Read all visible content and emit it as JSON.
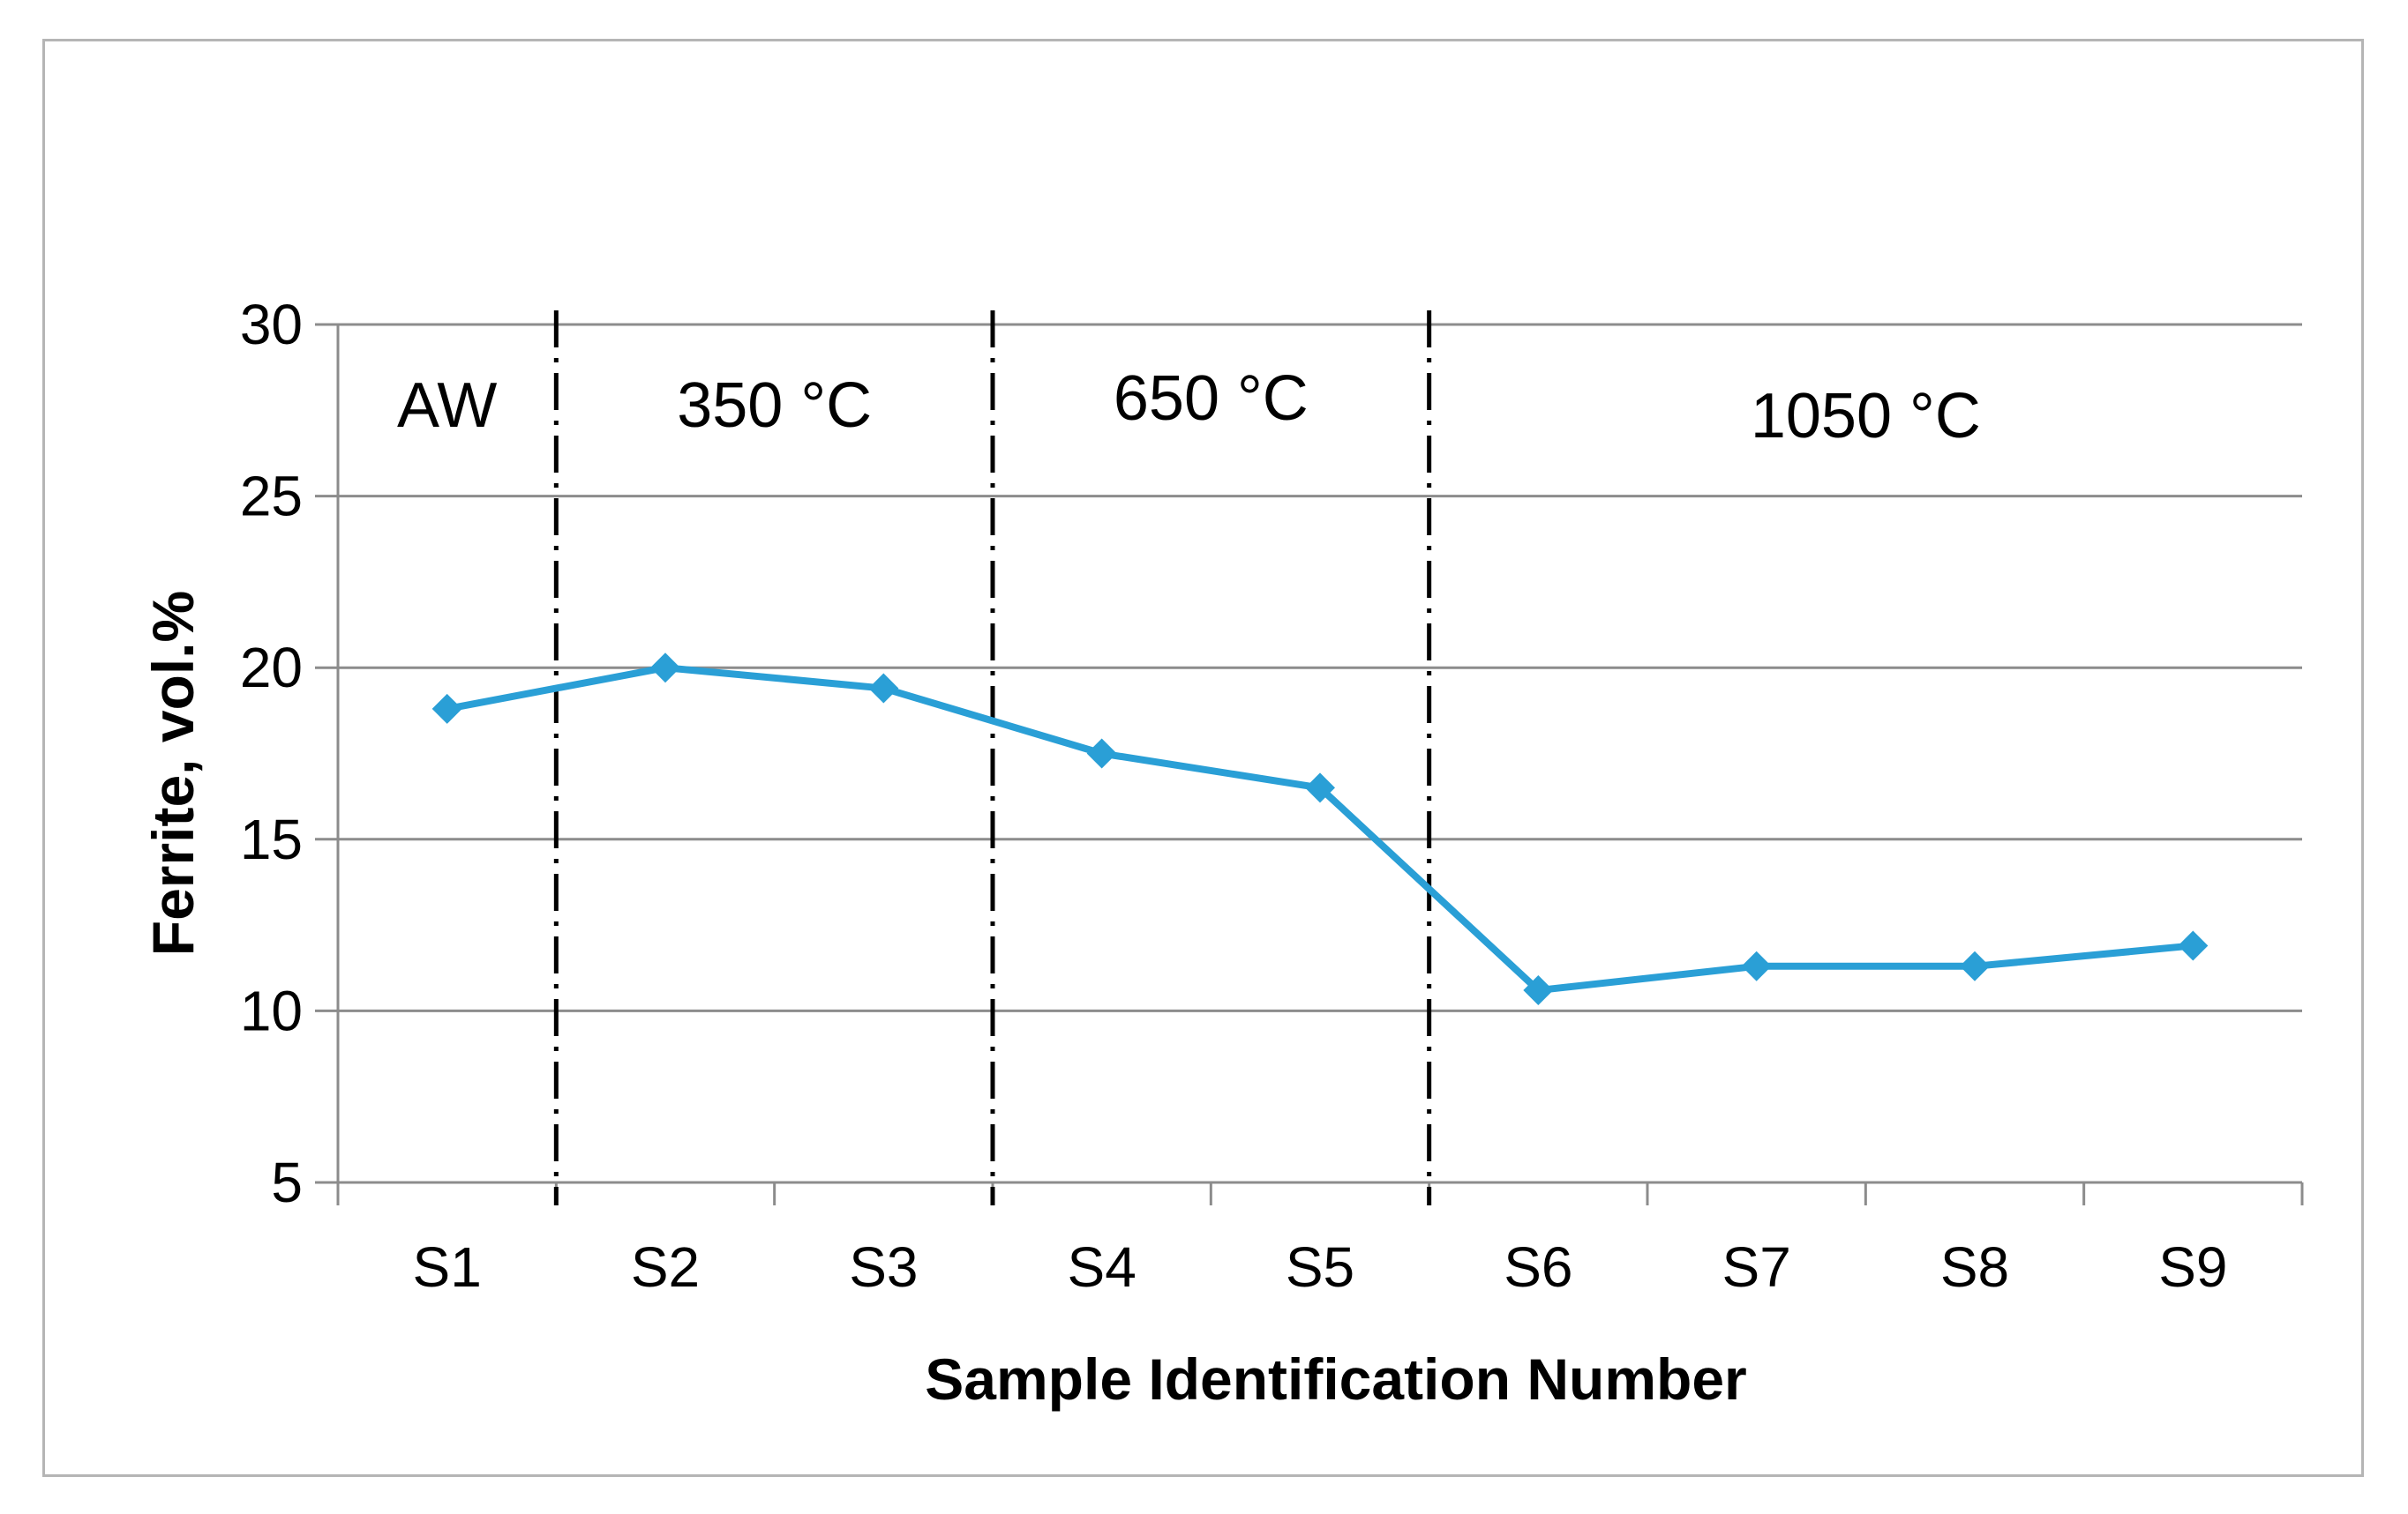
{
  "chart_data": {
    "type": "line",
    "title": "",
    "xlabel": "Sample Identification Number",
    "ylabel": "Ferrite, vol.%",
    "categories": [
      "S1",
      "S2",
      "S3",
      "S4",
      "S5",
      "S6",
      "S7",
      "S8",
      "S9"
    ],
    "series": [
      {
        "values": [
          18.8,
          20.0,
          19.4,
          17.5,
          16.5,
          10.6,
          11.3,
          11.3,
          11.9
        ]
      }
    ],
    "ylim": [
      5,
      30
    ],
    "yticks": [
      "5",
      "10",
      "15",
      "20",
      "25",
      "30"
    ],
    "grid": "horizontal",
    "legend": "none",
    "region_labels": [
      "AW",
      "350 °C",
      "650 °C",
      "1050 °C"
    ],
    "region_dividers_after": [
      "S1",
      "S3",
      "S5"
    ],
    "colors": {
      "series": "#2a9fd6",
      "grid": "#8c8c8c",
      "divider": "#000000",
      "frame": "#b5b5b5"
    },
    "marker": "diamond"
  }
}
